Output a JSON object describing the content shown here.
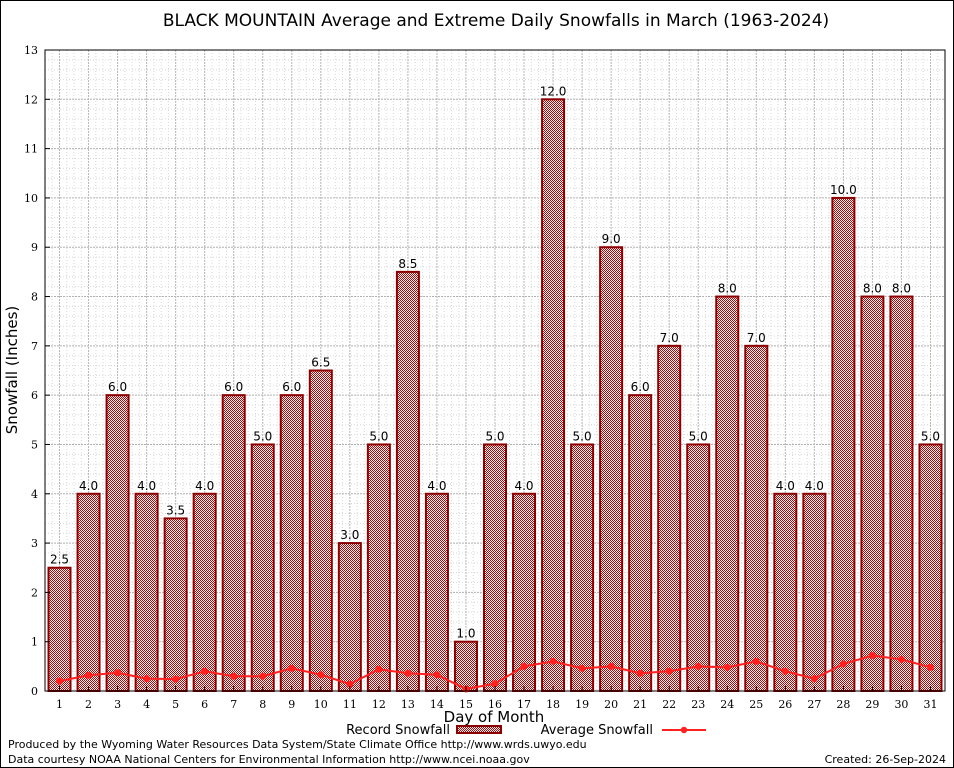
{
  "chart_data": {
    "type": "bar",
    "title": "BLACK MOUNTAIN Average and Extreme Daily Snowfalls in March (1963-2024)",
    "xlabel": "Day of Month",
    "ylabel": "Snowfall (Inches)",
    "ylim": [
      0,
      13
    ],
    "grid": true,
    "legend_placement": "bottom",
    "categories": [
      "1",
      "2",
      "3",
      "4",
      "5",
      "6",
      "7",
      "8",
      "9",
      "10",
      "11",
      "12",
      "13",
      "14",
      "15",
      "16",
      "17",
      "18",
      "19",
      "20",
      "21",
      "22",
      "23",
      "24",
      "25",
      "26",
      "27",
      "28",
      "29",
      "30",
      "31"
    ],
    "series": [
      {
        "name": "Record Snowfall",
        "type": "bar",
        "color": "#8b0000",
        "values": [
          2.5,
          4.0,
          6.0,
          4.0,
          3.5,
          4.0,
          6.0,
          5.0,
          6.0,
          6.5,
          3.0,
          5.0,
          8.5,
          4.0,
          1.0,
          5.0,
          4.0,
          12.0,
          5.0,
          9.0,
          6.0,
          7.0,
          5.0,
          8.0,
          7.0,
          4.0,
          4.0,
          10.0,
          8.0,
          8.0,
          5.0
        ],
        "labels": [
          "2.5",
          "4.0",
          "6.0",
          "4.0",
          "3.5",
          "4.0",
          "6.0",
          "5.0",
          "6.0",
          "6.5",
          "3.0",
          "5.0",
          "8.5",
          "4.0",
          "1.0",
          "5.0",
          "4.0",
          "12.0",
          "5.0",
          "9.0",
          "6.0",
          "7.0",
          "5.0",
          "8.0",
          "7.0",
          "4.0",
          "4.0",
          "10.0",
          "8.0",
          "8.0",
          "5.0"
        ]
      },
      {
        "name": "Average Snowfall",
        "type": "line",
        "color": "#ff2020",
        "values": [
          0.2,
          0.32,
          0.37,
          0.25,
          0.24,
          0.4,
          0.3,
          0.3,
          0.46,
          0.33,
          0.14,
          0.44,
          0.36,
          0.33,
          0.04,
          0.15,
          0.5,
          0.6,
          0.46,
          0.5,
          0.36,
          0.4,
          0.5,
          0.48,
          0.6,
          0.4,
          0.25,
          0.55,
          0.72,
          0.64,
          0.48
        ]
      }
    ],
    "yticks": [
      "0",
      "1",
      "2",
      "3",
      "4",
      "5",
      "6",
      "7",
      "8",
      "9",
      "10",
      "11",
      "12",
      "13"
    ]
  },
  "footer": {
    "produced_by": "Produced by the Wyoming Water Resources Data System/State Climate Office http://www.wrds.uwyo.edu",
    "courtesy": "Data courtesy NOAA National Centers for Environmental Information http://www.ncei.noaa.gov",
    "created": "Created: 26-Sep-2024"
  }
}
